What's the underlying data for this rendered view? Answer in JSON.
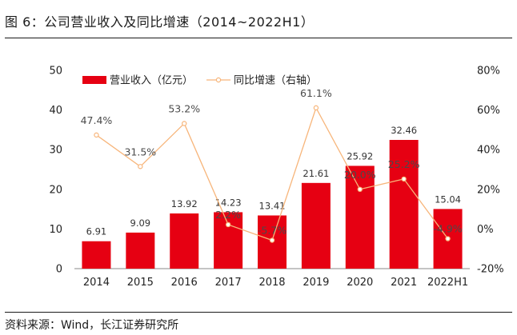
{
  "figure": {
    "title": "图 6：公司营业收入及同比增速（2014~2022H1）",
    "source": "资料来源：Wind，长江证券研究所"
  },
  "chart_data": {
    "type": "bar",
    "categories": [
      "2014",
      "2015",
      "2016",
      "2017",
      "2018",
      "2019",
      "2020",
      "2021",
      "2022H1"
    ],
    "series": [
      {
        "name": "营业收入（亿元）",
        "type": "bar",
        "axis": "left",
        "color": "#e60012",
        "values": [
          6.91,
          9.09,
          13.92,
          14.23,
          13.41,
          21.61,
          25.92,
          32.46,
          15.04
        ],
        "labels": [
          "6.91",
          "9.09",
          "13.92",
          "14.23",
          "13.41",
          "21.61",
          "25.92",
          "32.46",
          "15.04"
        ]
      },
      {
        "name": "同比增速（右轴）",
        "type": "line",
        "axis": "right",
        "color": "#f7b57a",
        "values": [
          47.4,
          31.5,
          53.2,
          2.2,
          -5.7,
          61.1,
          20.0,
          25.2,
          -4.9
        ],
        "labels": [
          "47.4%",
          "31.5%",
          "53.2%",
          "2.2%",
          "-5.7%",
          "61.1%",
          "20.0%",
          "25.2%",
          "-4.9%"
        ]
      }
    ],
    "y_left": {
      "min": 0,
      "max": 50,
      "ticks": [
        "0",
        "10",
        "20",
        "30",
        "40",
        "50"
      ]
    },
    "y_right": {
      "min": -20,
      "max": 80,
      "ticks": [
        "-20%",
        "0%",
        "20%",
        "40%",
        "60%",
        "80%"
      ]
    },
    "legend": "top-left",
    "grid": false
  }
}
